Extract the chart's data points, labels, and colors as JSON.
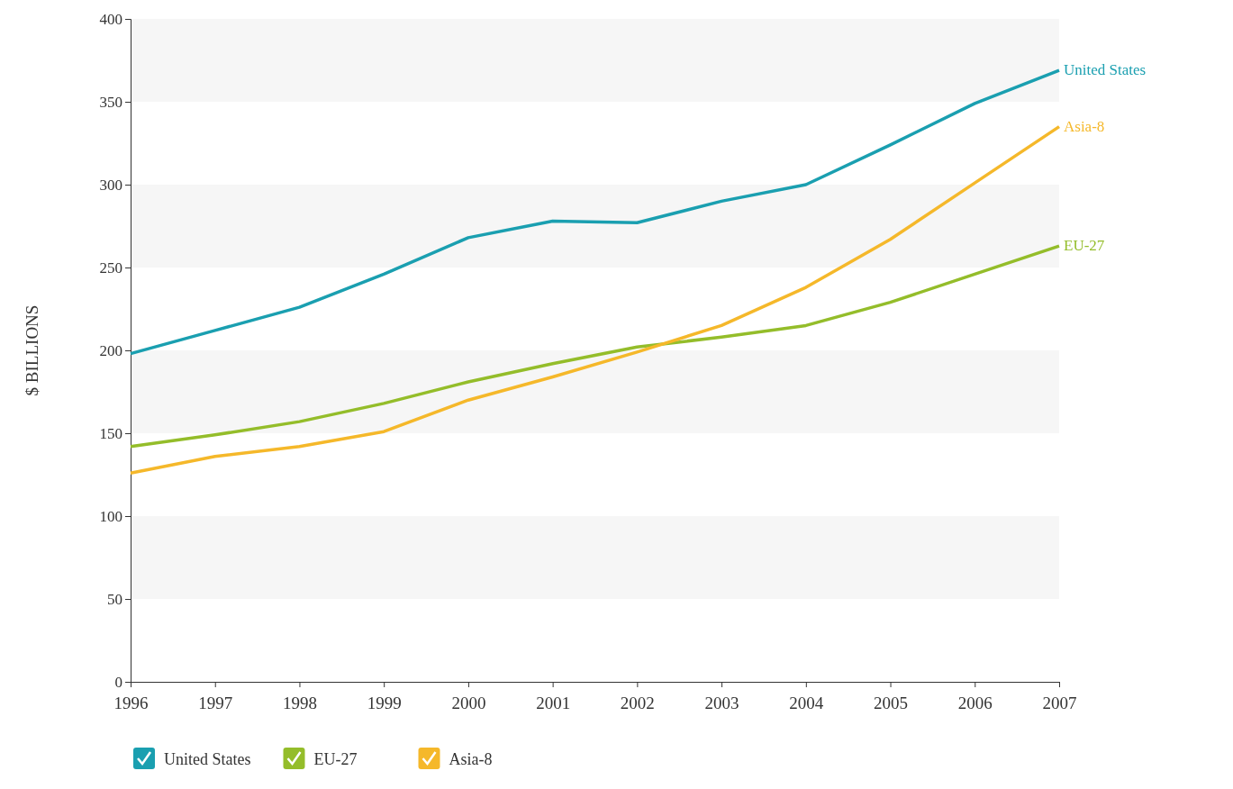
{
  "chart_data": {
    "type": "line",
    "ylabel": "$ BILLIONS",
    "x": [
      1996,
      1997,
      1998,
      1999,
      2000,
      2001,
      2002,
      2003,
      2004,
      2005,
      2006,
      2007
    ],
    "xlim": [
      1996,
      2007
    ],
    "xticks": [
      1996,
      1997,
      1998,
      1999,
      2000,
      2001,
      2002,
      2003,
      2004,
      2005,
      2006,
      2007
    ],
    "ylim": [
      0,
      400
    ],
    "yticks": [
      0,
      50,
      100,
      150,
      200,
      250,
      300,
      350,
      400
    ],
    "series": [
      {
        "name": "United States",
        "color": "#1a9fb0",
        "values": [
          198,
          212,
          226,
          246,
          268,
          278,
          277,
          290,
          300,
          324,
          349,
          369
        ]
      },
      {
        "name": "EU-27",
        "color": "#94bd2a",
        "values": [
          142,
          149,
          157,
          168,
          181,
          192,
          202,
          208,
          215,
          229,
          246,
          263
        ]
      },
      {
        "name": "Asia-8",
        "color": "#f5b82a",
        "values": [
          126,
          136,
          142,
          151,
          170,
          184,
          199,
          215,
          238,
          267,
          301,
          335
        ]
      }
    ],
    "bands": [
      {
        "axis": "y",
        "from": 50,
        "to": 100,
        "color": "#f6f6f6"
      },
      {
        "axis": "y",
        "from": 150,
        "to": 200,
        "color": "#f6f6f6"
      },
      {
        "axis": "y",
        "from": 250,
        "to": 300,
        "color": "#f6f6f6"
      },
      {
        "axis": "y",
        "from": 350,
        "to": 400,
        "color": "#f6f6f6"
      }
    ],
    "legend": "bottom",
    "marker": "none",
    "line_style": "solid"
  }
}
